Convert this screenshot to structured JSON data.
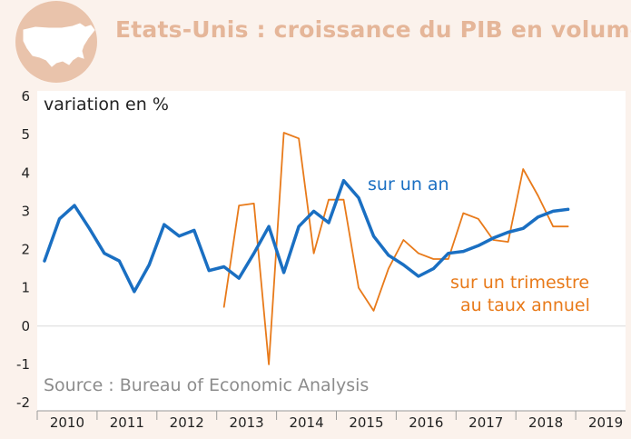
{
  "title": "Etats-Unis : croissance du PIB en volume",
  "chart_data": {
    "type": "line",
    "ylabel": "variation en %",
    "xlabel": "",
    "ylim": [
      -2,
      6
    ],
    "yticks": [
      "6",
      "5",
      "4",
      "3",
      "2",
      "1",
      "0",
      "-1",
      "-2"
    ],
    "xticks": [
      "2010",
      "2011",
      "2012",
      "2013",
      "2014",
      "2015",
      "2016",
      "2017",
      "2018",
      "2019"
    ],
    "source": "Source : Bureau of Economic Analysis",
    "series": [
      {
        "name": "sur un an",
        "color": "#1a6fc2",
        "x": [
          2010.0,
          2010.25,
          2010.5,
          2010.75,
          2011.0,
          2011.25,
          2011.5,
          2011.75,
          2012.0,
          2012.25,
          2012.5,
          2012.75,
          2013.0,
          2013.25,
          2013.5,
          2013.75,
          2014.0,
          2014.25,
          2014.5,
          2014.75,
          2015.0,
          2015.25,
          2015.5,
          2015.75,
          2016.0,
          2016.25,
          2016.5,
          2016.75,
          2017.0,
          2017.25,
          2017.5,
          2017.75,
          2018.0,
          2018.25,
          2018.5,
          2018.75
        ],
        "y": [
          1.7,
          2.8,
          3.15,
          2.55,
          1.9,
          1.7,
          0.9,
          1.6,
          2.65,
          2.35,
          2.5,
          1.45,
          1.55,
          1.25,
          1.9,
          2.6,
          1.4,
          2.6,
          3.0,
          2.7,
          3.8,
          3.35,
          2.35,
          1.85,
          1.6,
          1.3,
          1.5,
          1.9,
          1.95,
          2.1,
          2.3,
          2.45,
          2.55,
          2.85,
          3.0,
          3.05
        ]
      },
      {
        "name": "sur un trimestre au taux annuel",
        "color": "#e87a1a",
        "x": [
          2013.0,
          2013.25,
          2013.5,
          2013.75,
          2014.0,
          2014.25,
          2014.5,
          2014.75,
          2015.0,
          2015.25,
          2015.5,
          2015.75,
          2016.0,
          2016.25,
          2016.5,
          2016.75,
          2017.0,
          2017.25,
          2017.5,
          2017.75,
          2018.0,
          2018.25,
          2018.5,
          2018.75
        ],
        "y": [
          0.5,
          3.15,
          3.2,
          -1.0,
          5.05,
          4.9,
          1.9,
          3.3,
          3.3,
          1.0,
          0.4,
          1.5,
          2.25,
          1.9,
          1.75,
          1.75,
          2.95,
          2.8,
          2.25,
          2.2,
          4.1,
          3.4,
          2.6,
          2.6
        ]
      }
    ],
    "annotations": {
      "blue": "sur un an",
      "orange_line1": "sur un trimestre",
      "orange_line2": "au taux annuel"
    }
  }
}
